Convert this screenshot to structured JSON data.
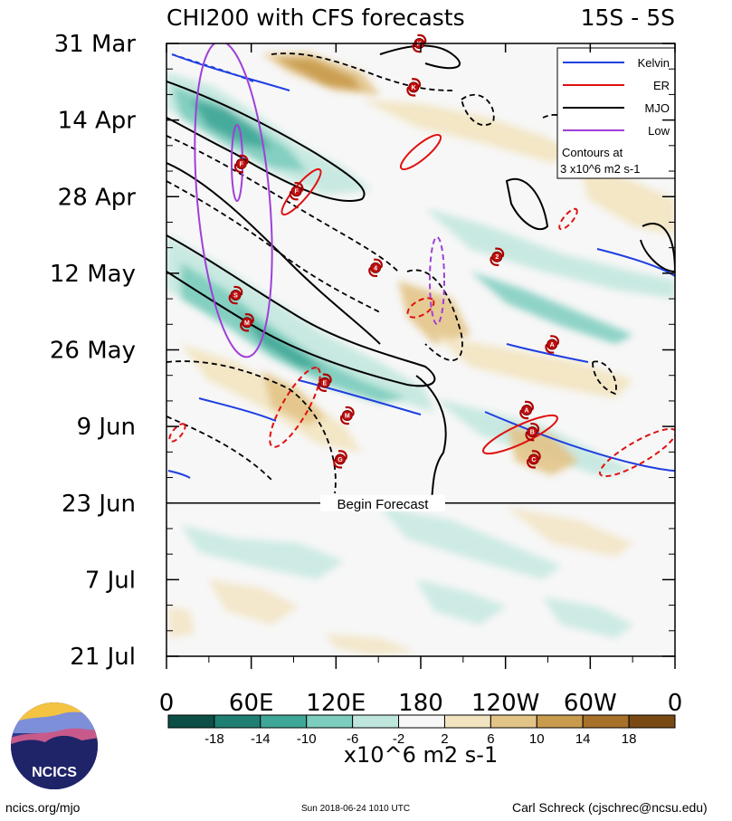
{
  "header": {
    "title": "CHI200 with CFS forecasts",
    "band": "15S - 5S"
  },
  "chart_data": {
    "type": "heatmap",
    "title": "CHI200 with CFS forecasts",
    "latitude_band": "15S - 5S",
    "x_ticks": [
      "0",
      "60E",
      "120E",
      "180",
      "120W",
      "60W",
      "0"
    ],
    "x_range_deg": [
      0,
      360
    ],
    "y_ticks": [
      "31 Mar",
      "14 Apr",
      "28 Apr",
      "12 May",
      "26 May",
      "9 Jun",
      "23 Jun",
      "7 Jul",
      "21 Jul"
    ],
    "y_range_days": [
      0,
      112
    ],
    "forecast_start_day": 84,
    "forecast_label": "Begin Forecast",
    "colorbar": {
      "levels": [
        "-18",
        "-14",
        "-10",
        "-6",
        "-2",
        "2",
        "6",
        "10",
        "14",
        "18"
      ],
      "colors": [
        "#0b4f46",
        "#1f7f73",
        "#3fa797",
        "#7ccdbd",
        "#bfe6dd",
        "#f7f7f7",
        "#f2e4c0",
        "#e3c487",
        "#c99b4d",
        "#a8712a",
        "#7a4a15"
      ],
      "units": "x10^6 m2 s-1"
    },
    "legend": [
      {
        "label": "Kelvin",
        "color": "#1f3fe0"
      },
      {
        "label": "ER",
        "color": "#e01010"
      },
      {
        "label": "MJO",
        "color": "#000000"
      },
      {
        "label": "Low",
        "color": "#a040d8"
      }
    ],
    "contour_note": [
      "Contours at",
      "3 x10^6 m2 s-1"
    ],
    "storms": [
      {
        "letter": "K",
        "lon": 179,
        "day": 0
      },
      {
        "letter": "K",
        "lon": 175,
        "day": 8
      },
      {
        "letter": "F",
        "lon": 53,
        "day": 22
      },
      {
        "letter": "F",
        "lon": 92,
        "day": 27
      },
      {
        "letter": "4",
        "lon": 148,
        "day": 41
      },
      {
        "letter": "S",
        "lon": 49,
        "day": 46
      },
      {
        "letter": "M",
        "lon": 57,
        "day": 51
      },
      {
        "letter": "2",
        "lon": 234,
        "day": 39
      },
      {
        "letter": "A",
        "lon": 273,
        "day": 55
      },
      {
        "letter": "E",
        "lon": 112,
        "day": 62
      },
      {
        "letter": "M",
        "lon": 128,
        "day": 68
      },
      {
        "letter": "A",
        "lon": 255,
        "day": 67
      },
      {
        "letter": "B",
        "lon": 259,
        "day": 71
      },
      {
        "letter": "G",
        "lon": 123,
        "day": 76
      },
      {
        "letter": "C",
        "lon": 260,
        "day": 76
      }
    ]
  },
  "footer": {
    "url": "ncics.org/mjo",
    "timestamp": "Sun 2018-06-24 1010 UTC",
    "author": "Carl Schreck (cjschrec@ncsu.edu)",
    "logo_text": "NCICS"
  }
}
